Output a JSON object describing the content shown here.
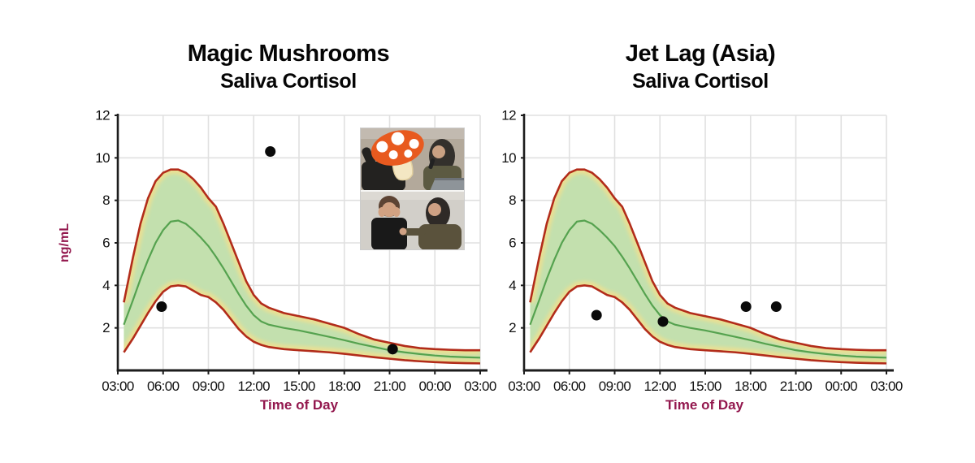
{
  "colors": {
    "background": "#ffffff",
    "grid": "#e0e0e0",
    "axis": "#1c1c1c",
    "band_fill": "#c3e0ae",
    "band_edge": "#ecdf91",
    "boundary": "#b22c1a",
    "mean": "#55a24f",
    "point": "#0a0a0a",
    "label_maroon": "#93184e",
    "title_black": "#050505"
  },
  "inset": {
    "icon": "mushroom-icon",
    "panels": 2
  },
  "chart_data": [
    {
      "type": "area",
      "title": "Magic Mushrooms",
      "subtitle": "Saliva Cortisol",
      "xlabel": "Time of Day",
      "ylabel": "ng/mL",
      "x_range_hours": [
        3,
        27
      ],
      "ylim": [
        0,
        12
      ],
      "x_tick_hours": [
        3,
        6,
        9,
        12,
        15,
        18,
        21,
        24,
        27
      ],
      "x_tick_labels": [
        "03:00",
        "06:00",
        "09:00",
        "12:00",
        "15:00",
        "18:00",
        "21:00",
        "00:00",
        "03:00"
      ],
      "y_ticks": [
        2,
        4,
        6,
        8,
        10,
        12
      ],
      "grid": true,
      "legend": "none",
      "band": {
        "hours": [
          3.4,
          4,
          4.5,
          5,
          5.5,
          6,
          6.5,
          7,
          7.5,
          8,
          8.5,
          9,
          9.5,
          10,
          10.5,
          11,
          11.5,
          12,
          12.5,
          13,
          14,
          15,
          16,
          17,
          18,
          19,
          20,
          21,
          22,
          23,
          24,
          25,
          26,
          27
        ],
        "upper": [
          3.2,
          5.3,
          6.9,
          8.1,
          8.9,
          9.3,
          9.45,
          9.45,
          9.3,
          9.0,
          8.6,
          8.1,
          7.7,
          6.9,
          6.0,
          5.1,
          4.2,
          3.55,
          3.15,
          2.95,
          2.7,
          2.55,
          2.4,
          2.2,
          2.0,
          1.7,
          1.45,
          1.3,
          1.15,
          1.05,
          1.0,
          0.97,
          0.95,
          0.95
        ],
        "mid": [
          2.15,
          3.3,
          4.3,
          5.2,
          6.0,
          6.6,
          7.0,
          7.05,
          6.9,
          6.6,
          6.25,
          5.85,
          5.35,
          4.8,
          4.2,
          3.6,
          3.05,
          2.6,
          2.3,
          2.15,
          2.0,
          1.88,
          1.73,
          1.58,
          1.42,
          1.25,
          1.1,
          0.95,
          0.85,
          0.77,
          0.7,
          0.65,
          0.62,
          0.6
        ],
        "lower": [
          0.85,
          1.5,
          2.1,
          2.7,
          3.25,
          3.7,
          3.95,
          4.0,
          3.95,
          3.75,
          3.55,
          3.45,
          3.2,
          2.85,
          2.4,
          1.95,
          1.6,
          1.35,
          1.2,
          1.1,
          1.0,
          0.95,
          0.9,
          0.85,
          0.78,
          0.7,
          0.62,
          0.55,
          0.48,
          0.43,
          0.39,
          0.36,
          0.34,
          0.33
        ]
      },
      "points": [
        {
          "hour": 5.9,
          "value": 3.0
        },
        {
          "hour": 13.1,
          "value": 10.3
        },
        {
          "hour": 21.2,
          "value": 1.0
        }
      ]
    },
    {
      "type": "area",
      "title": "Jet Lag (Asia)",
      "subtitle": "Saliva Cortisol",
      "xlabel": "Time of Day",
      "ylabel": "",
      "x_range_hours": [
        3,
        27
      ],
      "ylim": [
        0,
        12
      ],
      "x_tick_hours": [
        3,
        6,
        9,
        12,
        15,
        18,
        21,
        24,
        27
      ],
      "x_tick_labels": [
        "03:00",
        "06:00",
        "09:00",
        "12:00",
        "15:00",
        "18:00",
        "21:00",
        "00:00",
        "03:00"
      ],
      "y_ticks": [
        2,
        4,
        6,
        8,
        10,
        12
      ],
      "grid": true,
      "legend": "none",
      "band": {
        "hours": [
          3.4,
          4,
          4.5,
          5,
          5.5,
          6,
          6.5,
          7,
          7.5,
          8,
          8.5,
          9,
          9.5,
          10,
          10.5,
          11,
          11.5,
          12,
          12.5,
          13,
          14,
          15,
          16,
          17,
          18,
          19,
          20,
          21,
          22,
          23,
          24,
          25,
          26,
          27
        ],
        "upper": [
          3.2,
          5.3,
          6.9,
          8.1,
          8.9,
          9.3,
          9.45,
          9.45,
          9.3,
          9.0,
          8.6,
          8.1,
          7.7,
          6.9,
          6.0,
          5.1,
          4.2,
          3.55,
          3.15,
          2.95,
          2.7,
          2.55,
          2.4,
          2.2,
          2.0,
          1.7,
          1.45,
          1.3,
          1.15,
          1.05,
          1.0,
          0.97,
          0.95,
          0.95
        ],
        "mid": [
          2.15,
          3.3,
          4.3,
          5.2,
          6.0,
          6.6,
          7.0,
          7.05,
          6.9,
          6.6,
          6.25,
          5.85,
          5.35,
          4.8,
          4.2,
          3.6,
          3.05,
          2.6,
          2.3,
          2.15,
          2.0,
          1.88,
          1.73,
          1.58,
          1.42,
          1.25,
          1.1,
          0.95,
          0.85,
          0.77,
          0.7,
          0.65,
          0.62,
          0.6
        ],
        "lower": [
          0.85,
          1.5,
          2.1,
          2.7,
          3.25,
          3.7,
          3.95,
          4.0,
          3.95,
          3.75,
          3.55,
          3.45,
          3.2,
          2.85,
          2.4,
          1.95,
          1.6,
          1.35,
          1.2,
          1.1,
          1.0,
          0.95,
          0.9,
          0.85,
          0.78,
          0.7,
          0.62,
          0.55,
          0.48,
          0.43,
          0.39,
          0.36,
          0.34,
          0.33
        ]
      },
      "points": [
        {
          "hour": 7.8,
          "value": 2.6
        },
        {
          "hour": 12.2,
          "value": 2.3
        },
        {
          "hour": 17.7,
          "value": 3.0
        },
        {
          "hour": 19.7,
          "value": 3.0
        }
      ]
    }
  ]
}
